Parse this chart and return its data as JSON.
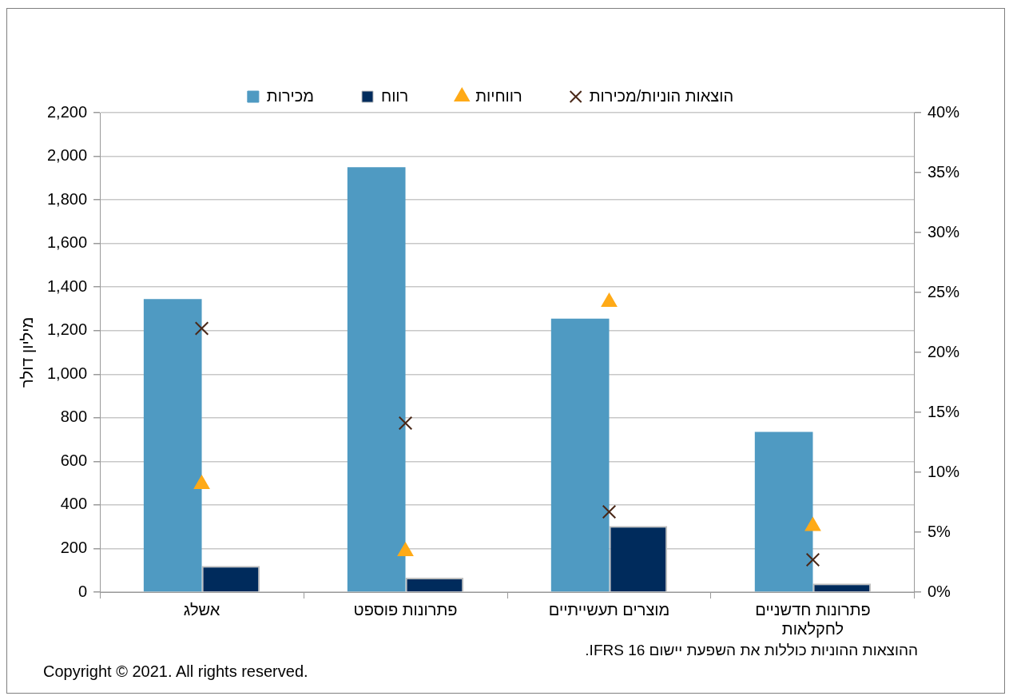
{
  "chart_data": {
    "type": "bar",
    "categories": [
      "אשלג",
      "פתרונות פוספט",
      "מוצרים תעשייתיים",
      "פתרונות חדשניים לחקלאות"
    ],
    "ylabel": "מיליון דולר",
    "series": [
      {
        "name": "מכירות",
        "color": "#4f9ac2",
        "values": [
          1345,
          1950,
          1255,
          735
        ]
      },
      {
        "name": "רווח",
        "color": "#002b5c",
        "values": [
          120,
          66,
          303,
          39
        ]
      },
      {
        "name": "רווחיות",
        "type": "scatter",
        "axis": "y2",
        "marker": "triangle",
        "color": "#ffaa17",
        "values": [
          9.0,
          3.4,
          24.2,
          5.5
        ]
      },
      {
        "name": "הוצאות הוניות/מכירות",
        "type": "scatter",
        "axis": "y2",
        "marker": "cross",
        "color": "#4a2818",
        "values": [
          22.0,
          14.1,
          6.7,
          2.7
        ]
      }
    ],
    "ylim": [
      0,
      2200
    ],
    "yticks": [
      0,
      {
        "value": 200,
        "label": "200"
      },
      {
        "value": 400,
        "label": "400"
      },
      {
        "value": 600,
        "label": "600"
      },
      {
        "value": 800,
        "label": "800"
      },
      {
        "value": 1000,
        "label": "1,000"
      },
      {
        "value": 1200,
        "label": "1,200"
      },
      {
        "value": 1400,
        "label": "1,400"
      },
      {
        "value": 1600,
        "label": "1,600"
      },
      {
        "value": 1800,
        "label": "1,800"
      },
      {
        "value": 2000,
        "label": "2,000"
      },
      {
        "value": 2200,
        "label": "2,200"
      }
    ],
    "y2lim": [
      0,
      40
    ],
    "y2ticks": [
      {
        "value": 0,
        "label": "0%"
      },
      {
        "value": 5,
        "label": "5%"
      },
      {
        "value": 10,
        "label": "10%"
      },
      {
        "value": 15,
        "label": "15%"
      },
      {
        "value": 20,
        "label": "20%"
      },
      {
        "value": 25,
        "label": "25%"
      },
      {
        "value": 30,
        "label": "30%"
      },
      {
        "value": 35,
        "label": "35%"
      },
      {
        "value": 40,
        "label": "40%"
      }
    ],
    "grid": "y",
    "legend": "top",
    "annotations": [
      "ההוצאות ההוניות כוללות את השפעת יישום IFRS 16.",
      "Copyright © 2021. All rights reserved."
    ]
  }
}
